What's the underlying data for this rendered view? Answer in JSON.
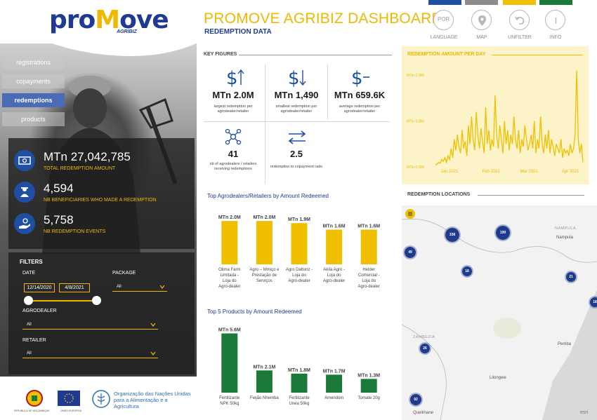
{
  "header": {
    "title": "PROMOVE AGRIBIZ DASHBOARD",
    "subtitle": "REDEMPTION DATA",
    "color_bars": [
      "#1f4fa3",
      "#8c8c8c",
      "#f0c000",
      "#1b7a3a"
    ],
    "icons": [
      {
        "label": "LANGUAGE",
        "icon": "language-por-icon",
        "text": "POR"
      },
      {
        "label": "MAP",
        "icon": "map-pin-icon"
      },
      {
        "label": "UNFILTER",
        "icon": "undo-icon"
      },
      {
        "label": "INFO",
        "icon": "info-icon"
      }
    ]
  },
  "logo": {
    "brand_a": "pro",
    "brand_m": "M",
    "brand_b": "ove",
    "sub": "AGRIBIZ"
  },
  "nav": [
    {
      "label": "registrations",
      "active": false
    },
    {
      "label": "copayments",
      "active": false
    },
    {
      "label": "redemptions",
      "active": true
    },
    {
      "label": "products",
      "active": false
    }
  ],
  "stats": [
    {
      "value": "MTn 27,042,785",
      "label": "TOTAL REDEMPTION AMOUNT",
      "icon": "money-icon"
    },
    {
      "value": "4,594",
      "label": "NB BENEFICIARIES WHO MADE A REDEMPTION",
      "icon": "farmer-icon"
    },
    {
      "value": "5,758",
      "label": "NB REDEMPTION EVENTS",
      "icon": "hand-coins-icon"
    }
  ],
  "filters": {
    "title": "FILTERS",
    "date_label": "DATE",
    "date_start": "12/14/2020",
    "date_end": "4/8/2021",
    "package_label": "PACKAGE",
    "package_value": "All",
    "agrodealer_label": "AGRODEALER",
    "agrodealer_value": "All",
    "retailer_label": "RETAILER",
    "retailer_value": "All"
  },
  "footer": {
    "mozambique_caption": "REPÚBLICA DE MOÇAMBIQUE",
    "eu_caption": "UNIÃO EUROPEIA",
    "fao_text": "Organização das Nações Unidas para a Alimentação e a Agricultura"
  },
  "key_figures": {
    "title": "KEY FIGURES",
    "items": [
      {
        "value": "MTn 2.0M",
        "desc": "largest redemption per agrodealer/retailer",
        "icon": "dollar-up-icon"
      },
      {
        "value": "MTn 1,490",
        "desc": "smallest redemption per agrodealer/retailer",
        "icon": "dollar-down-icon"
      },
      {
        "value": "MTn 659.6K",
        "desc": "average redemption per agrodealer/retailer",
        "icon": "dollar-minus-icon"
      },
      {
        "value": "41",
        "desc": "nb of agrodealers / retailers receiving redemptions",
        "icon": "network-icon"
      },
      {
        "value": "2.5",
        "desc": "redemption to copayment ratio",
        "icon": "exchange-icon"
      }
    ]
  },
  "line_panel_title": "REDEMPTION AMOUNT PER DAY",
  "map_title": "REDEMPTION LOCATIONS",
  "chart_data": [
    {
      "type": "bar",
      "title": "Top Agrodealers/Retailers by Amount Redeemed",
      "color": "#f0c000",
      "categories": [
        "Olima Farm Limitada - Loja do Agro-dealer",
        "Agro – Mmiço e Prestação de Serviços",
        "Agro Daltonz - Loja do Agro-dealer",
        "Akila Agro - Loja do Agro-dealer",
        "Helder Comercial - Loja do Agro-dealer"
      ],
      "values": [
        2.0,
        2.0,
        1.9,
        1.6,
        1.6
      ],
      "value_labels": [
        "MTn 2.0M",
        "MTn 2.0M",
        "MTn 1.9M",
        "MTn 1.6M",
        "MTn 1.6M"
      ],
      "ylim": [
        0,
        2.1
      ]
    },
    {
      "type": "bar",
      "title": "Top 5 Products by Amount Redeemed",
      "color": "#1b7a3a",
      "categories": [
        "Fertilizante NPK 50kg",
        "Feijão Nhemba",
        "Fertilizante Ureia 50kg",
        "Amendoin",
        "Tomate 20g"
      ],
      "values": [
        5.6,
        2.1,
        1.8,
        1.7,
        1.3
      ],
      "value_labels": [
        "MTn 5.6M",
        "MTn 2.1M",
        "MTn 1.8M",
        "MTn 1.7M",
        "MTn 1.3M"
      ],
      "ylim": [
        0,
        5.7
      ]
    },
    {
      "type": "line",
      "title": "REDEMPTION AMOUNT PER DAY",
      "color": "#f0c000",
      "y_ticks": [
        {
          "value": 0,
          "label": "MTn 0.0M"
        },
        {
          "value": 0.5,
          "label": "MTn 0.5M"
        },
        {
          "value": 1.0,
          "label": "MTn 1.0M"
        }
      ],
      "x_ticks": [
        "Jan 2021",
        "Feb 2021",
        "Mar 2021",
        "Apr 2021"
      ],
      "ylim": [
        0,
        1.1
      ],
      "values": [
        0.02,
        0.03,
        0.05,
        0.04,
        0.08,
        0.06,
        0.1,
        0.05,
        0.12,
        0.08,
        0.2,
        0.1,
        0.3,
        0.18,
        0.35,
        0.22,
        0.15,
        0.4,
        0.2,
        0.28,
        0.12,
        0.45,
        0.25,
        0.55,
        0.3,
        0.18,
        0.6,
        0.35,
        0.2,
        0.42,
        0.28,
        0.15,
        0.65,
        0.25,
        0.4,
        0.18,
        0.3,
        0.22,
        0.78,
        0.35,
        0.2,
        0.45,
        0.3,
        0.15,
        0.5,
        0.25,
        0.4,
        0.18,
        0.35,
        0.25,
        0.55,
        0.3,
        0.2,
        0.4,
        0.15,
        0.3,
        0.22,
        0.45,
        0.3,
        0.18,
        0.25,
        0.35,
        0.2,
        0.5,
        0.15,
        0.3,
        0.2,
        0.55,
        0.25,
        0.15,
        0.35,
        0.2,
        0.4,
        0.15,
        0.3,
        0.22,
        0.12,
        0.25,
        0.2,
        0.15,
        0.3,
        0.1,
        0.2,
        0.15,
        0.18,
        0.12,
        0.25,
        0.15,
        0.2,
        0.35,
        1.05,
        0.3,
        0.15,
        0.25,
        0.05
      ]
    }
  ],
  "map": {
    "clusters": [
      {
        "label": "338"
      },
      {
        "label": "199"
      },
      {
        "label": "49"
      },
      {
        "label": "18"
      },
      {
        "label": "21"
      },
      {
        "label": "18"
      },
      {
        "label": "26"
      },
      {
        "label": "92"
      }
    ],
    "places": [
      "Nampula",
      "Pemba",
      "Lilongwe",
      "Quelimane"
    ],
    "regions": [
      "NAMPULA",
      "ZAMBEZIA"
    ],
    "attribution": "esri"
  }
}
